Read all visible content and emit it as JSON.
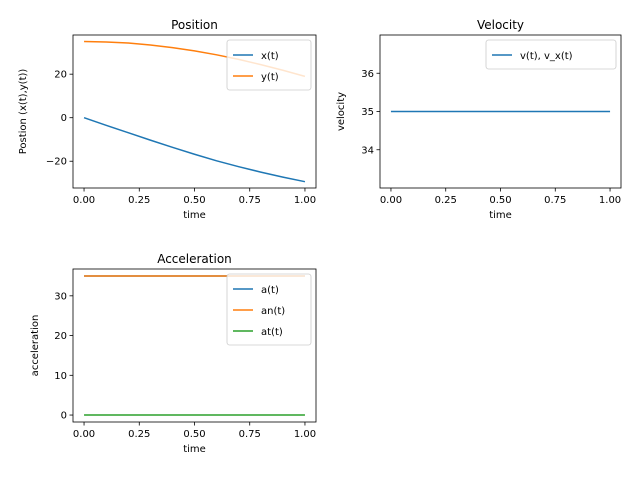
{
  "chart_data": [
    {
      "type": "line",
      "title": "Position",
      "xlabel": "time",
      "ylabel": "Postion (x(t),y(t))",
      "xlim": [
        -0.05,
        1.05
      ],
      "ylim": [
        -32.3,
        38.0
      ],
      "xticks": [
        0.0,
        0.25,
        0.5,
        0.75,
        1.0
      ],
      "xtick_labels": [
        "0.00",
        "0.25",
        "0.50",
        "0.75",
        "1.00"
      ],
      "yticks": [
        -20,
        0,
        20
      ],
      "ytick_labels": [
        "−20",
        "0",
        "20"
      ],
      "legend_position": "top-right",
      "x": [
        0.0,
        0.1,
        0.2,
        0.3,
        0.4,
        0.5,
        0.6,
        0.7,
        0.8,
        0.9,
        1.0
      ],
      "series": [
        {
          "name": "x(t)",
          "color": "#1f77b4",
          "values": [
            0.0,
            -3.5,
            -6.9,
            -10.3,
            -13.6,
            -16.8,
            -19.8,
            -22.5,
            -25.0,
            -27.3,
            -29.4
          ]
        },
        {
          "name": "y(t)",
          "color": "#ff7f0e",
          "values": [
            35.0,
            34.8,
            34.3,
            33.4,
            32.2,
            30.7,
            28.9,
            26.8,
            24.4,
            21.8,
            19.0
          ]
        }
      ]
    },
    {
      "type": "line",
      "title": "Velocity",
      "xlabel": "time",
      "ylabel": "velocity",
      "xlim": [
        -0.05,
        1.05
      ],
      "ylim": [
        33.0,
        37.0
      ],
      "xticks": [
        0.0,
        0.25,
        0.5,
        0.75,
        1.0
      ],
      "xtick_labels": [
        "0.00",
        "0.25",
        "0.50",
        "0.75",
        "1.00"
      ],
      "yticks": [
        34,
        35,
        36
      ],
      "ytick_labels": [
        "34",
        "35",
        "36"
      ],
      "legend_position": "top-right",
      "x": [
        0.0,
        0.1,
        0.2,
        0.3,
        0.4,
        0.5,
        0.6,
        0.7,
        0.8,
        0.9,
        1.0
      ],
      "series": [
        {
          "name": "v(t), v_x(t)",
          "color": "#1f77b4",
          "values": [
            35,
            35,
            35,
            35,
            35,
            35,
            35,
            35,
            35,
            35,
            35
          ]
        }
      ]
    },
    {
      "type": "line",
      "title": "Acceleration",
      "xlabel": "time",
      "ylabel": "acceleration",
      "xlim": [
        -0.05,
        1.05
      ],
      "ylim": [
        -1.75,
        36.75
      ],
      "xticks": [
        0.0,
        0.25,
        0.5,
        0.75,
        1.0
      ],
      "xtick_labels": [
        "0.00",
        "0.25",
        "0.50",
        "0.75",
        "1.00"
      ],
      "yticks": [
        0,
        10,
        20,
        30
      ],
      "ytick_labels": [
        "0",
        "10",
        "20",
        "30"
      ],
      "legend_position": "top-right",
      "x": [
        0.0,
        0.1,
        0.2,
        0.3,
        0.4,
        0.5,
        0.6,
        0.7,
        0.8,
        0.9,
        1.0
      ],
      "series": [
        {
          "name": "a(t)",
          "color": "#1f77b4",
          "values": [
            35,
            35,
            35,
            35,
            35,
            35,
            35,
            35,
            35,
            35,
            35
          ]
        },
        {
          "name": "an(t)",
          "color": "#ff7f0e",
          "values": [
            35,
            35,
            35,
            35,
            35,
            35,
            35,
            35,
            35,
            35,
            35
          ]
        },
        {
          "name": "at(t)",
          "color": "#2ca02c",
          "values": [
            0,
            0,
            0,
            0,
            0,
            0,
            0,
            0,
            0,
            0,
            0
          ]
        }
      ]
    }
  ]
}
